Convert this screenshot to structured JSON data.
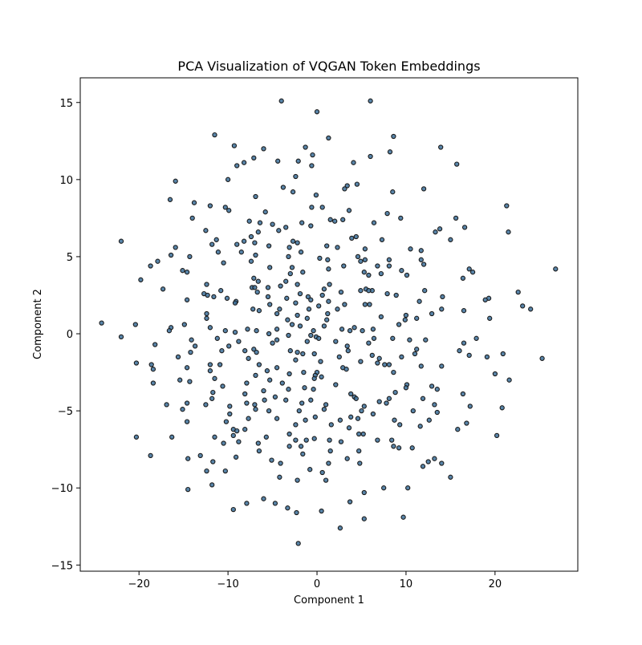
{
  "chart_data": {
    "type": "scatter",
    "title": "PCA Visualization of VQGAN Token Embeddings",
    "xlabel": "Component 1",
    "ylabel": "Component 2",
    "xlim": [
      -26.6,
      29.3
    ],
    "ylim": [
      -15.4,
      16.6
    ],
    "x_ticks": [
      -20,
      -10,
      0,
      10,
      20
    ],
    "y_ticks": [
      -15,
      -10,
      -5,
      0,
      5,
      10,
      15
    ],
    "x_tick_labels": [
      "−20",
      "−10",
      "0",
      "10",
      "20"
    ],
    "y_tick_labels": [
      "−15",
      "−10",
      "−5",
      "0",
      "5",
      "10",
      "15"
    ],
    "grid": false,
    "marker_color": "#3b6e99",
    "marker_edge_color": "#1a1a1a",
    "points": [
      [
        -4.0,
        15.1
      ],
      [
        6.0,
        15.1
      ],
      [
        0.0,
        14.4
      ],
      [
        -11.5,
        12.9
      ],
      [
        8.6,
        12.8
      ],
      [
        1.3,
        12.7
      ],
      [
        -9.3,
        12.2
      ],
      [
        -1.3,
        12.1
      ],
      [
        13.9,
        12.1
      ],
      [
        -6.0,
        12.0
      ],
      [
        -0.5,
        11.6
      ],
      [
        8.2,
        11.8
      ],
      [
        -4.4,
        11.2
      ],
      [
        6.0,
        11.5
      ],
      [
        -8.2,
        11.1
      ],
      [
        -7.1,
        11.4
      ],
      [
        -2.1,
        11.2
      ],
      [
        4.1,
        11.1
      ],
      [
        15.7,
        11.0
      ],
      [
        -9.0,
        10.9
      ],
      [
        -0.6,
        10.9
      ],
      [
        -2.4,
        10.2
      ],
      [
        -10.0,
        10.0
      ],
      [
        -15.9,
        9.9
      ],
      [
        12.0,
        9.4
      ],
      [
        -3.8,
        9.5
      ],
      [
        3.4,
        9.6
      ],
      [
        4.5,
        9.7
      ],
      [
        3.1,
        9.4
      ],
      [
        -2.7,
        9.2
      ],
      [
        8.5,
        9.2
      ],
      [
        -0.1,
        9.0
      ],
      [
        -6.9,
        8.9
      ],
      [
        -16.5,
        8.7
      ],
      [
        -13.8,
        8.5
      ],
      [
        -12.0,
        8.3
      ],
      [
        -10.3,
        8.2
      ],
      [
        21.3,
        8.3
      ],
      [
        -9.9,
        8.0
      ],
      [
        0.6,
        8.2
      ],
      [
        -0.6,
        8.2
      ],
      [
        3.6,
        8.0
      ],
      [
        -5.8,
        7.9
      ],
      [
        7.9,
        7.8
      ],
      [
        -14.0,
        7.5
      ],
      [
        15.6,
        7.5
      ],
      [
        9.4,
        7.5
      ],
      [
        1.5,
        7.4
      ],
      [
        2.0,
        7.3
      ],
      [
        2.9,
        7.4
      ],
      [
        -6.4,
        7.2
      ],
      [
        -5.0,
        7.1
      ],
      [
        -7.6,
        7.3
      ],
      [
        6.4,
        7.2
      ],
      [
        -0.7,
        7.0
      ],
      [
        -1.7,
        7.2
      ],
      [
        16.6,
        6.9
      ],
      [
        -4.3,
        6.7
      ],
      [
        -3.5,
        6.9
      ],
      [
        13.8,
        6.8
      ],
      [
        -12.5,
        6.7
      ],
      [
        13.3,
        6.6
      ],
      [
        -6.6,
        6.6
      ],
      [
        21.5,
        6.6
      ],
      [
        -7.4,
        6.3
      ],
      [
        -16.4,
        5.1
      ],
      [
        -11.3,
        6.1
      ],
      [
        -8.2,
        6.0
      ],
      [
        -7.0,
        5.9
      ],
      [
        -5.4,
        5.7
      ],
      [
        -11.8,
        5.8
      ],
      [
        -9.0,
        5.8
      ],
      [
        -22.0,
        6.0
      ],
      [
        3.9,
        6.2
      ],
      [
        4.4,
        6.3
      ],
      [
        7.3,
        6.1
      ],
      [
        15.0,
        6.1
      ],
      [
        -2.7,
        6.0
      ],
      [
        -2.2,
        5.9
      ],
      [
        -3.1,
        5.6
      ],
      [
        1.1,
        5.7
      ],
      [
        2.3,
        5.6
      ],
      [
        -15.9,
        5.6
      ],
      [
        -11.1,
        5.3
      ],
      [
        10.5,
        5.5
      ],
      [
        11.7,
        5.4
      ],
      [
        -8.5,
        5.3
      ],
      [
        5.4,
        5.5
      ],
      [
        -6.9,
        5.1
      ],
      [
        -1.8,
        5.3
      ],
      [
        -3.2,
        5.0
      ],
      [
        4.6,
        5.0
      ],
      [
        11.7,
        4.8
      ],
      [
        -14.3,
        5.0
      ],
      [
        0.3,
        4.9
      ],
      [
        1.2,
        4.8
      ],
      [
        4.9,
        4.7
      ],
      [
        5.4,
        4.8
      ],
      [
        8.1,
        4.8
      ],
      [
        -17.9,
        4.7
      ],
      [
        -7.4,
        4.7
      ],
      [
        -10.5,
        4.6
      ],
      [
        -18.7,
        4.4
      ],
      [
        3.0,
        4.4
      ],
      [
        6.8,
        4.4
      ],
      [
        12.0,
        4.5
      ],
      [
        -2.8,
        4.3
      ],
      [
        8.1,
        4.4
      ],
      [
        17.1,
        4.2
      ],
      [
        26.8,
        4.2
      ],
      [
        -5.3,
        4.3
      ],
      [
        17.5,
        4.0
      ],
      [
        1.3,
        4.2
      ],
      [
        -15.1,
        4.1
      ],
      [
        9.5,
        4.1
      ],
      [
        -14.6,
        4.0
      ],
      [
        5.3,
        4.0
      ],
      [
        -3.0,
        3.9
      ],
      [
        -1.6,
        4.0
      ],
      [
        -7.1,
        3.6
      ],
      [
        10.1,
        3.8
      ],
      [
        5.8,
        3.8
      ],
      [
        7.2,
        3.9
      ],
      [
        -19.8,
        3.5
      ],
      [
        -6.6,
        3.4
      ],
      [
        -3.5,
        3.4
      ],
      [
        -2.2,
        3.2
      ],
      [
        16.4,
        3.6
      ],
      [
        -12.4,
        3.2
      ],
      [
        1.4,
        3.2
      ],
      [
        -7.3,
        3.0
      ],
      [
        -5.5,
        3.0
      ],
      [
        -17.3,
        2.9
      ],
      [
        -4.1,
        3.1
      ],
      [
        -7.0,
        3.0
      ],
      [
        5.5,
        2.9
      ],
      [
        6.2,
        2.8
      ],
      [
        -10.8,
        2.8
      ],
      [
        -6.7,
        2.7
      ],
      [
        -12.7,
        2.6
      ],
      [
        0.8,
        2.9
      ],
      [
        2.7,
        2.7
      ],
      [
        4.9,
        2.8
      ],
      [
        5.8,
        2.8
      ],
      [
        12.1,
        2.8
      ],
      [
        -1.0,
        2.4
      ],
      [
        7.9,
        2.6
      ],
      [
        -12.3,
        2.5
      ],
      [
        -11.6,
        2.4
      ],
      [
        14.1,
        2.4
      ],
      [
        -9.1,
        2.1
      ],
      [
        -10.1,
        2.3
      ],
      [
        -5.5,
        2.4
      ],
      [
        19.3,
        2.3
      ],
      [
        -3.4,
        2.3
      ],
      [
        -1.9,
        2.6
      ],
      [
        0.6,
        2.5
      ],
      [
        -0.7,
        2.2
      ],
      [
        -14.6,
        2.2
      ],
      [
        18.9,
        2.2
      ],
      [
        8.9,
        2.5
      ],
      [
        22.6,
        2.7
      ],
      [
        -2.4,
        2.0
      ],
      [
        -5.3,
        1.9
      ],
      [
        3.1,
        1.9
      ],
      [
        1.3,
        2.1
      ],
      [
        5.4,
        1.9
      ],
      [
        5.9,
        1.9
      ],
      [
        11.5,
        2.1
      ],
      [
        -9.2,
        2.0
      ],
      [
        0.2,
        1.8
      ],
      [
        -4.2,
        1.6
      ],
      [
        -0.9,
        1.6
      ],
      [
        2.3,
        1.6
      ],
      [
        16.5,
        1.5
      ],
      [
        23.1,
        1.8
      ],
      [
        -6.5,
        1.5
      ],
      [
        -7.2,
        1.6
      ],
      [
        -12.4,
        1.3
      ],
      [
        -4.5,
        1.3
      ],
      [
        14.0,
        1.6
      ],
      [
        -12.4,
        1.0
      ],
      [
        24.0,
        1.6
      ],
      [
        1.2,
        1.3
      ],
      [
        -2.2,
        1.2
      ],
      [
        12.9,
        1.3
      ],
      [
        10.0,
        1.2
      ],
      [
        -3.3,
        0.9
      ],
      [
        -1.1,
        1.0
      ],
      [
        7.2,
        1.1
      ],
      [
        11.2,
        1.0
      ],
      [
        19.4,
        1.0
      ],
      [
        1.1,
        0.9
      ],
      [
        -1.9,
        0.5
      ],
      [
        -2.8,
        0.6
      ],
      [
        -24.2,
        0.7
      ],
      [
        -20.4,
        0.6
      ],
      [
        -16.4,
        0.4
      ],
      [
        -14.9,
        0.6
      ],
      [
        -12.0,
        0.4
      ],
      [
        9.9,
        0.9
      ],
      [
        -4.5,
        0.3
      ],
      [
        -0.4,
        0.2
      ],
      [
        0.8,
        0.5
      ],
      [
        3.7,
        0.2
      ],
      [
        2.8,
        0.3
      ],
      [
        4.2,
        0.4
      ],
      [
        9.2,
        0.6
      ],
      [
        -16.6,
        0.2
      ],
      [
        -10.3,
        0.2
      ],
      [
        -6.8,
        0.2
      ],
      [
        -9.2,
        0.1
      ],
      [
        -7.8,
        0.3
      ],
      [
        -0.7,
        -0.1
      ],
      [
        5.1,
        0.2
      ],
      [
        6.3,
        0.3
      ],
      [
        -5.4,
        0.0
      ],
      [
        -3.2,
        -0.1
      ],
      [
        -22.0,
        -0.2
      ],
      [
        -14.1,
        -0.4
      ],
      [
        -11.2,
        -0.3
      ],
      [
        -0.1,
        -0.2
      ],
      [
        0.2,
        -0.3
      ],
      [
        6.4,
        -0.3
      ],
      [
        8.5,
        -0.3
      ],
      [
        10.4,
        -0.4
      ],
      [
        12.2,
        -0.4
      ],
      [
        17.9,
        -0.3
      ],
      [
        -8.8,
        -0.5
      ],
      [
        -5.0,
        -0.6
      ],
      [
        -4.5,
        -0.4
      ],
      [
        -1.1,
        -0.5
      ],
      [
        2.1,
        -0.5
      ],
      [
        5.8,
        -0.6
      ],
      [
        16.5,
        -0.6
      ],
      [
        -18.2,
        -0.7
      ],
      [
        -9.9,
        -0.8
      ],
      [
        -13.7,
        -0.8
      ],
      [
        -8.1,
        -1.1
      ],
      [
        -7.1,
        -1.0
      ],
      [
        -6.8,
        -1.2
      ],
      [
        3.4,
        -0.8
      ],
      [
        11.2,
        -1.0
      ],
      [
        -10.7,
        -1.1
      ],
      [
        -3.0,
        -1.1
      ],
      [
        -2.2,
        -1.2
      ],
      [
        3.5,
        -1.1
      ],
      [
        16.0,
        -1.1
      ],
      [
        -14.2,
        -1.2
      ],
      [
        -1.6,
        -1.3
      ],
      [
        -0.3,
        -1.3
      ],
      [
        2.5,
        -1.5
      ],
      [
        6.2,
        -1.4
      ],
      [
        7.0,
        -1.6
      ],
      [
        9.5,
        -1.5
      ],
      [
        11.0,
        -1.3
      ],
      [
        17.1,
        -1.4
      ],
      [
        19.1,
        -1.5
      ],
      [
        20.9,
        -1.3
      ],
      [
        25.3,
        -1.6
      ],
      [
        -15.6,
        -1.5
      ],
      [
        -2.4,
        -1.7
      ],
      [
        -7.7,
        -1.6
      ],
      [
        0.4,
        -1.8
      ],
      [
        4.9,
        -1.8
      ],
      [
        -20.3,
        -1.9
      ],
      [
        6.8,
        -1.9
      ],
      [
        -6.5,
        -2.0
      ],
      [
        -4.5,
        -2.2
      ],
      [
        -12.0,
        -2.0
      ],
      [
        -18.6,
        -2.0
      ],
      [
        -10.9,
        -2.0
      ],
      [
        7.6,
        -2.0
      ],
      [
        8.1,
        -2.0
      ],
      [
        11.7,
        -2.1
      ],
      [
        14.0,
        -2.1
      ],
      [
        -14.6,
        -2.2
      ],
      [
        -18.4,
        -2.3
      ],
      [
        -5.6,
        -2.4
      ],
      [
        2.9,
        -2.2
      ],
      [
        -1.5,
        -2.5
      ],
      [
        0.0,
        -2.5
      ],
      [
        3.3,
        -2.3
      ],
      [
        -12.0,
        -2.4
      ],
      [
        8.6,
        -2.5
      ],
      [
        -3.1,
        -2.6
      ],
      [
        -6.9,
        -2.7
      ],
      [
        -0.2,
        -2.7
      ],
      [
        0.5,
        -2.8
      ],
      [
        20.0,
        -2.6
      ],
      [
        -5.3,
        -3.0
      ],
      [
        -0.3,
        -2.9
      ],
      [
        -11.5,
        -2.9
      ],
      [
        -15.4,
        -3.0
      ],
      [
        -18.4,
        -3.2
      ],
      [
        -7.9,
        -3.2
      ],
      [
        -14.3,
        -3.1
      ],
      [
        -3.9,
        -3.2
      ],
      [
        2.1,
        -3.3
      ],
      [
        10.1,
        -3.3
      ],
      [
        21.6,
        -3.0
      ],
      [
        -10.6,
        -3.4
      ],
      [
        -1.4,
        -3.5
      ],
      [
        12.9,
        -3.4
      ],
      [
        13.5,
        -3.6
      ],
      [
        -6.0,
        -3.7
      ],
      [
        -0.4,
        -3.6
      ],
      [
        10.0,
        -3.5
      ],
      [
        -11.7,
        -3.8
      ],
      [
        -3.2,
        -3.6
      ],
      [
        -8.1,
        -3.9
      ],
      [
        3.8,
        -3.9
      ],
      [
        8.8,
        -3.8
      ],
      [
        -11.8,
        -4.2
      ],
      [
        -5.9,
        -4.3
      ],
      [
        -3.5,
        -4.3
      ],
      [
        -0.7,
        -4.3
      ],
      [
        4.2,
        -4.1
      ],
      [
        8.1,
        -4.2
      ],
      [
        11.9,
        -4.2
      ],
      [
        -4.7,
        -4.1
      ],
      [
        4.4,
        -4.2
      ],
      [
        16.4,
        -3.9
      ],
      [
        -7.0,
        -4.6
      ],
      [
        -1.7,
        -4.5
      ],
      [
        -14.6,
        -4.5
      ],
      [
        -9.8,
        -4.7
      ],
      [
        1.0,
        -4.6
      ],
      [
        -16.9,
        -4.6
      ],
      [
        -12.5,
        -4.6
      ],
      [
        -7.9,
        -4.5
      ],
      [
        7.0,
        -4.4
      ],
      [
        7.8,
        -4.5
      ],
      [
        13.2,
        -4.6
      ],
      [
        17.2,
        -4.7
      ],
      [
        5.3,
        -4.7
      ],
      [
        -15.1,
        -4.9
      ],
      [
        -6.9,
        -4.9
      ],
      [
        -2.0,
        -5.0
      ],
      [
        0.8,
        -4.9
      ],
      [
        5.0,
        -5.0
      ],
      [
        10.8,
        -5.0
      ],
      [
        13.5,
        -5.1
      ],
      [
        -9.8,
        -5.2
      ],
      [
        -5.4,
        -5.0
      ],
      [
        6.3,
        -5.2
      ],
      [
        20.8,
        -4.8
      ],
      [
        -4.5,
        -5.5
      ],
      [
        -0.2,
        -5.4
      ],
      [
        3.8,
        -5.4
      ],
      [
        -7.7,
        -5.5
      ],
      [
        -1.3,
        -5.6
      ],
      [
        4.6,
        -5.5
      ],
      [
        12.6,
        -5.6
      ],
      [
        -14.6,
        -5.7
      ],
      [
        -10.2,
        -5.7
      ],
      [
        1.6,
        -5.9
      ],
      [
        2.6,
        -5.6
      ],
      [
        8.7,
        -5.6
      ],
      [
        -2.4,
        -5.9
      ],
      [
        -9.4,
        -6.2
      ],
      [
        -9.0,
        -6.3
      ],
      [
        -8.1,
        -6.2
      ],
      [
        3.6,
        -6.1
      ],
      [
        9.3,
        -5.9
      ],
      [
        15.8,
        -6.2
      ],
      [
        11.6,
        -6.0
      ],
      [
        16.8,
        -5.8
      ],
      [
        -3.1,
        -6.5
      ],
      [
        -9.4,
        -6.6
      ],
      [
        -20.3,
        -6.7
      ],
      [
        -16.3,
        -6.7
      ],
      [
        -11.5,
        -6.7
      ],
      [
        -5.7,
        -6.7
      ],
      [
        4.7,
        -6.5
      ],
      [
        5.2,
        -6.5
      ],
      [
        -2.4,
        -6.9
      ],
      [
        -1.2,
        -6.9
      ],
      [
        -0.3,
        -6.8
      ],
      [
        1.4,
        -6.9
      ],
      [
        -8.8,
        -7.0
      ],
      [
        -10.5,
        -7.1
      ],
      [
        -6.6,
        -7.1
      ],
      [
        6.8,
        -6.9
      ],
      [
        8.4,
        -6.9
      ],
      [
        20.2,
        -6.6
      ],
      [
        2.7,
        -7.0
      ],
      [
        -1.8,
        -7.3
      ],
      [
        -3.1,
        -7.3
      ],
      [
        8.6,
        -7.3
      ],
      [
        9.2,
        -7.4
      ],
      [
        10.7,
        -7.4
      ],
      [
        -6.5,
        -7.6
      ],
      [
        1.5,
        -7.6
      ],
      [
        4.7,
        -7.6
      ],
      [
        -1.6,
        -7.8
      ],
      [
        -18.7,
        -7.9
      ],
      [
        -13.1,
        -7.9
      ],
      [
        -9.1,
        -8.0
      ],
      [
        3.4,
        -8.1
      ],
      [
        -5.1,
        -8.2
      ],
      [
        -14.5,
        -8.1
      ],
      [
        -11.7,
        -8.3
      ],
      [
        -4.1,
        -8.4
      ],
      [
        12.5,
        -8.3
      ],
      [
        13.2,
        -8.1
      ],
      [
        1.3,
        -8.4
      ],
      [
        -0.8,
        -8.8
      ],
      [
        4.8,
        -8.4
      ],
      [
        11.9,
        -8.6
      ],
      [
        14.0,
        -8.4
      ],
      [
        -12.4,
        -8.9
      ],
      [
        -10.3,
        -8.9
      ],
      [
        0.6,
        -9.0
      ],
      [
        -2.2,
        -9.5
      ],
      [
        -4.2,
        -9.3
      ],
      [
        1.0,
        -9.5
      ],
      [
        -11.8,
        -9.8
      ],
      [
        -14.5,
        -10.1
      ],
      [
        5.3,
        -10.3
      ],
      [
        7.5,
        -10.0
      ],
      [
        10.2,
        -10.0
      ],
      [
        15.0,
        -9.3
      ],
      [
        -6.0,
        -10.7
      ],
      [
        -4.7,
        -11.0
      ],
      [
        -3.3,
        -11.3
      ],
      [
        -9.4,
        -11.4
      ],
      [
        -7.9,
        -11.0
      ],
      [
        3.7,
        -10.9
      ],
      [
        0.5,
        -11.5
      ],
      [
        9.7,
        -11.9
      ],
      [
        -2.3,
        -11.6
      ],
      [
        5.3,
        -12.0
      ],
      [
        2.6,
        -12.6
      ],
      [
        -2.1,
        -13.6
      ]
    ]
  }
}
